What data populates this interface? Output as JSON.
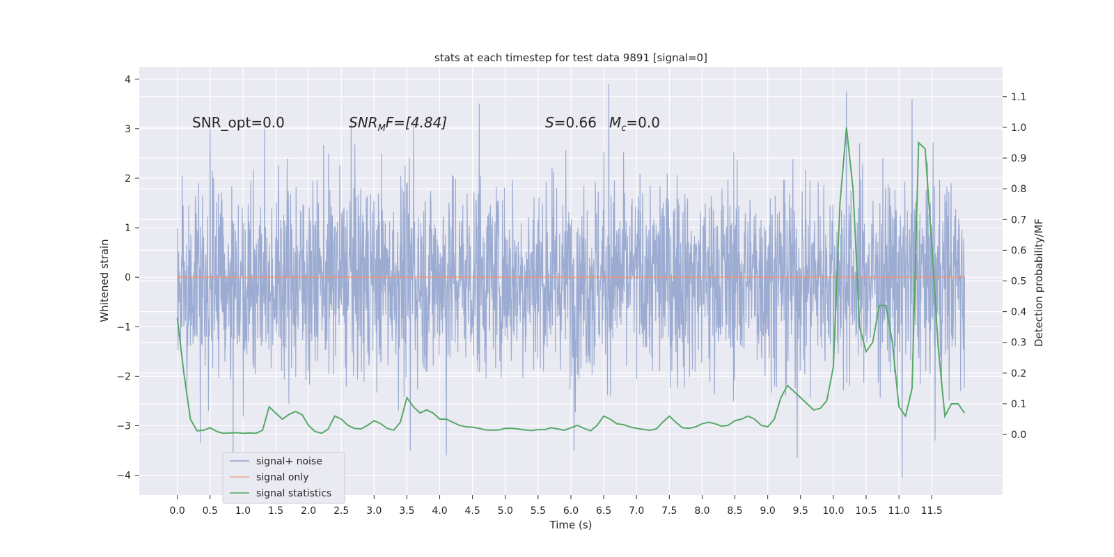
{
  "chart_data": {
    "type": "line",
    "title": "stats at each timestep for test data 9891 [signal=0]",
    "xlabel": "Time (s)",
    "ylabel": "Whitened strain",
    "y2label": "Detection probability/MF",
    "xlim": [
      -0.58,
      12.58
    ],
    "ylim": [
      -4.4,
      4.25
    ],
    "y2lim": [
      -0.197,
      1.197
    ],
    "x_ticks": [
      "0.0",
      "0.5",
      "1.0",
      "1.5",
      "2.0",
      "2.5",
      "3.0",
      "3.5",
      "4.0",
      "4.5",
      "5.0",
      "5.5",
      "6.0",
      "6.5",
      "7.0",
      "7.5",
      "8.0",
      "8.5",
      "9.0",
      "9.5",
      "10.0",
      "10.5",
      "11.0",
      "11.5"
    ],
    "y_ticks": [
      "4",
      "3",
      "2",
      "1",
      "0",
      "−1",
      "−2",
      "−3",
      "−4"
    ],
    "y2_ticks": [
      "1.1",
      "1.0",
      "0.9",
      "0.8",
      "0.7",
      "0.6",
      "0.5",
      "0.4",
      "0.3",
      "0.2",
      "0.1",
      "0.0"
    ],
    "grid": true,
    "legend_position": "lower-left",
    "annotations": {
      "snr_opt": "SNR_opt=0.0",
      "snr_mf_base": "SNR",
      "snr_mf_sub": "M",
      "snr_mf_rest": "F=[4.84]",
      "s_label": "S",
      "s_value": "=0.66",
      "mc_base": "M",
      "mc_sub": "c",
      "mc_value": "=0.0"
    },
    "series": [
      {
        "name": "signal+ noise",
        "color": "#8da0cb",
        "style": "dense noise, roughly ±2 std envelope",
        "x_range": [
          0.0,
          12.0
        ],
        "envelope_upper": 2.3,
        "envelope_lower": -2.3,
        "peaks": [
          {
            "x": 0.35,
            "y": 3.3
          },
          {
            "x": 0.5,
            "y": 3.0
          },
          {
            "x": 2.65,
            "y": 3.1
          },
          {
            "x": 3.6,
            "y": 3.1
          },
          {
            "x": 4.6,
            "y": 3.5
          },
          {
            "x": 6.58,
            "y": 3.9
          },
          {
            "x": 10.2,
            "y": 3.75
          },
          {
            "x": 9.45,
            "y": 3.35
          },
          {
            "x": 11.2,
            "y": 3.6
          },
          {
            "x": 11.55,
            "y": 3.4
          },
          {
            "x": 0.85,
            "y": -3.6
          },
          {
            "x": 3.55,
            "y": -3.5
          },
          {
            "x": 4.1,
            "y": -3.6
          },
          {
            "x": 6.05,
            "y": -3.5
          },
          {
            "x": 9.45,
            "y": -3.65
          },
          {
            "x": 11.05,
            "y": -4.05
          },
          {
            "x": 11.55,
            "y": -3.3
          },
          {
            "x": 0.35,
            "y": -3.35
          }
        ]
      },
      {
        "name": "signal only",
        "color": "#fc8d62",
        "x": [
          0.0,
          12.0
        ],
        "y": [
          0.0,
          0.0
        ]
      },
      {
        "name": "signal statistics",
        "color": "#55a868",
        "axis": "right",
        "x": [
          0.0,
          0.1,
          0.2,
          0.3,
          0.4,
          0.5,
          0.6,
          0.7,
          0.8,
          0.9,
          1.0,
          1.1,
          1.2,
          1.3,
          1.4,
          1.5,
          1.6,
          1.7,
          1.8,
          1.9,
          2.0,
          2.1,
          2.2,
          2.3,
          2.4,
          2.5,
          2.6,
          2.7,
          2.8,
          2.9,
          3.0,
          3.1,
          3.2,
          3.3,
          3.4,
          3.5,
          3.6,
          3.7,
          3.8,
          3.9,
          4.0,
          4.1,
          4.2,
          4.3,
          4.4,
          4.5,
          4.6,
          4.7,
          4.8,
          4.9,
          5.0,
          5.1,
          5.2,
          5.3,
          5.4,
          5.5,
          5.6,
          5.7,
          5.8,
          5.9,
          6.0,
          6.1,
          6.2,
          6.3,
          6.4,
          6.5,
          6.6,
          6.7,
          6.8,
          6.9,
          7.0,
          7.1,
          7.2,
          7.3,
          7.4,
          7.5,
          7.6,
          7.7,
          7.8,
          7.9,
          8.0,
          8.1,
          8.2,
          8.3,
          8.4,
          8.5,
          8.6,
          8.7,
          8.8,
          8.9,
          9.0,
          9.1,
          9.2,
          9.3,
          9.4,
          9.5,
          9.6,
          9.7,
          9.8,
          9.9,
          10.0,
          10.1,
          10.2,
          10.3,
          10.4,
          10.5,
          10.6,
          10.7,
          10.8,
          10.9,
          11.0,
          11.1,
          11.2,
          11.3,
          11.4,
          11.5,
          11.6,
          11.7,
          11.8,
          11.9,
          12.0
        ],
        "y": [
          0.38,
          0.2,
          0.05,
          0.012,
          0.014,
          0.022,
          0.01,
          0.004,
          0.005,
          0.006,
          0.004,
          0.005,
          0.004,
          0.014,
          0.09,
          0.07,
          0.05,
          0.065,
          0.075,
          0.065,
          0.03,
          0.01,
          0.004,
          0.018,
          0.06,
          0.05,
          0.03,
          0.02,
          0.018,
          0.03,
          0.045,
          0.035,
          0.02,
          0.014,
          0.04,
          0.12,
          0.09,
          0.07,
          0.08,
          0.07,
          0.05,
          0.05,
          0.04,
          0.03,
          0.025,
          0.024,
          0.02,
          0.015,
          0.014,
          0.015,
          0.02,
          0.02,
          0.018,
          0.015,
          0.013,
          0.016,
          0.016,
          0.022,
          0.018,
          0.014,
          0.022,
          0.03,
          0.02,
          0.012,
          0.03,
          0.06,
          0.05,
          0.035,
          0.032,
          0.025,
          0.02,
          0.017,
          0.014,
          0.018,
          0.04,
          0.06,
          0.04,
          0.022,
          0.02,
          0.025,
          0.035,
          0.04,
          0.035,
          0.027,
          0.03,
          0.045,
          0.05,
          0.06,
          0.05,
          0.03,
          0.025,
          0.05,
          0.12,
          0.16,
          0.14,
          0.12,
          0.1,
          0.08,
          0.085,
          0.11,
          0.22,
          0.75,
          1.0,
          0.8,
          0.35,
          0.27,
          0.3,
          0.42,
          0.42,
          0.3,
          0.09,
          0.06,
          0.15,
          0.95,
          0.93,
          0.62,
          0.28,
          0.06,
          0.1,
          0.1,
          0.07
        ]
      }
    ]
  }
}
